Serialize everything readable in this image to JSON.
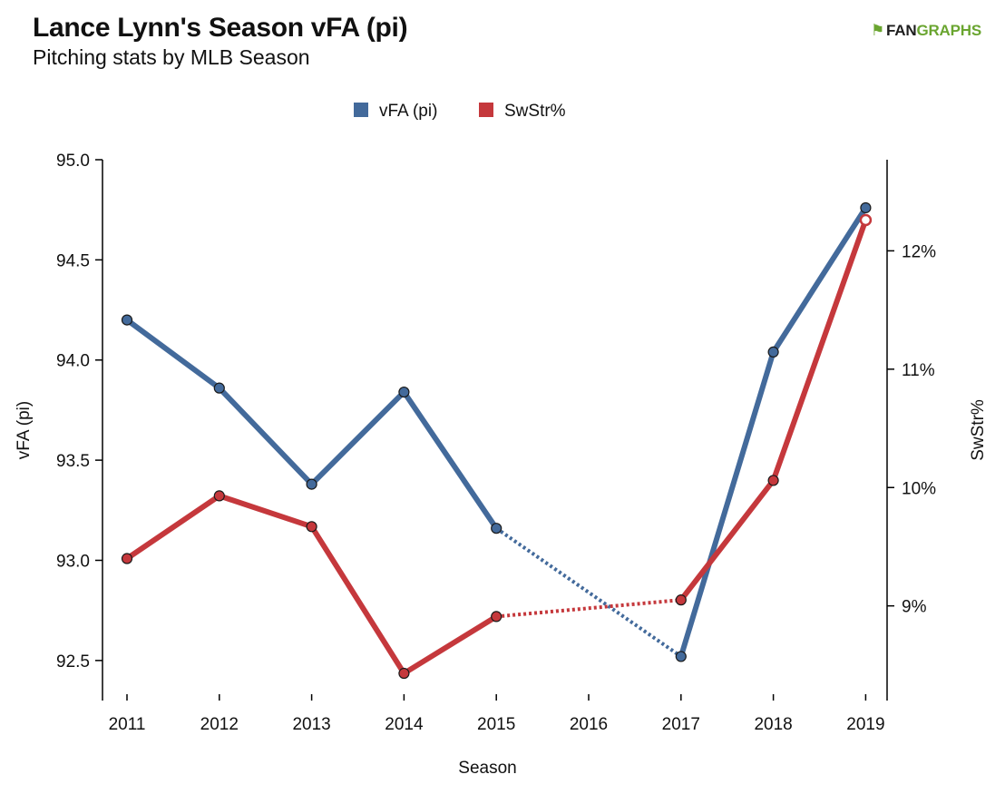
{
  "title": "Lance Lynn's Season vFA (pi)",
  "subtitle": "Pitching stats by MLB Season",
  "brand": {
    "icon": "fangraphs-logo-icon",
    "part1": "FAN",
    "part2": "GRAPHS",
    "color_dark": "#1f1f1f",
    "color_green": "#6aa530"
  },
  "chart_data": {
    "type": "line",
    "title": "Lance Lynn's Season vFA (pi)",
    "subtitle": "Pitching stats by MLB Season",
    "xlabel": "Season",
    "categories": [
      "2011",
      "2012",
      "2013",
      "2014",
      "2015",
      "2016",
      "2017",
      "2018",
      "2019"
    ],
    "y_left": {
      "label": "vFA (pi)",
      "ylim": [
        92.3,
        95.0
      ],
      "ticks": [
        "92.5",
        "93.0",
        "93.5",
        "94.0",
        "94.5",
        "95.0"
      ]
    },
    "y_right": {
      "label": "SwStr%",
      "ylim": [
        0.082,
        0.1277
      ],
      "ticks": [
        "9%",
        "10%",
        "11%",
        "12%"
      ]
    },
    "series": [
      {
        "name": "vFA (pi)",
        "axis": "left",
        "color": "#436a9b",
        "values": [
          94.2,
          93.86,
          93.38,
          93.84,
          93.16,
          null,
          92.52,
          94.04,
          94.76
        ]
      },
      {
        "name": "SwStr%",
        "axis": "right",
        "color": "#c5383c",
        "values": [
          0.094,
          0.0993,
          0.0967,
          0.0843,
          0.0891,
          null,
          0.0905,
          0.1006,
          0.1226
        ]
      }
    ],
    "missing_seasons": [
      "2016"
    ],
    "legend": "top-center",
    "grid": false
  }
}
